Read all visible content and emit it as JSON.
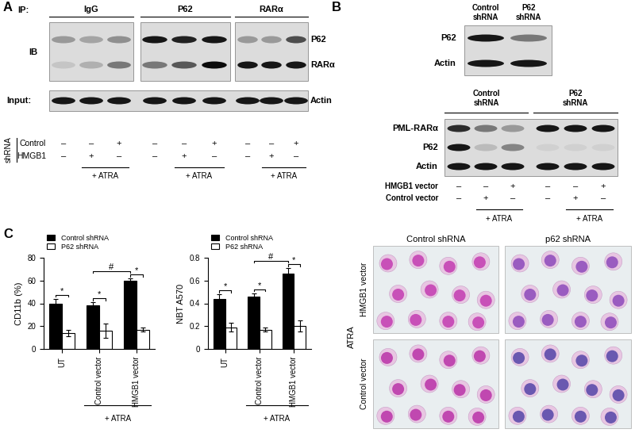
{
  "panel_A": {
    "letter": "A",
    "ip_label": "IP:",
    "ib_label": "IB",
    "ib_rows": [
      "P62",
      "RARα"
    ],
    "groups": [
      {
        "name": "IgG",
        "intensities": [
          [
            0.3,
            0.25,
            0.35
          ],
          [
            0.1,
            0.2,
            0.45
          ]
        ]
      },
      {
        "name": "P62",
        "intensities": [
          [
            0.9,
            0.85,
            0.9
          ],
          [
            0.45,
            0.6,
            0.95
          ]
        ]
      },
      {
        "name": "RARα",
        "intensities": [
          [
            0.3,
            0.3,
            0.65
          ],
          [
            0.9,
            0.9,
            0.9
          ]
        ]
      }
    ],
    "input_label": "Input:",
    "input_row": {
      "label": "Actin",
      "intensities": [
        0.9,
        0.9,
        0.9,
        0.9,
        0.9,
        0.9,
        0.9,
        0.9,
        0.9
      ]
    },
    "shrna_label": "shRNA",
    "conditions": [
      {
        "name": "Control",
        "marks": [
          "–",
          "–",
          "+"
        ]
      },
      {
        "name": "HMGB1",
        "marks": [
          "–",
          "+",
          "–"
        ]
      }
    ],
    "treatment": "+ ATRA",
    "treated_lanes": [
      false,
      true,
      true
    ]
  },
  "panel_B": {
    "letter": "B",
    "top_blot": {
      "lanes": [
        "Control shRNA",
        "P62 shRNA"
      ],
      "rows": [
        {
          "label": "P62",
          "intensities": [
            0.9,
            0.45
          ]
        },
        {
          "label": "Actin",
          "intensities": [
            0.9,
            0.9
          ]
        }
      ]
    },
    "bottom_blot": {
      "groups": [
        "Control shRNA",
        "P62 shRNA"
      ],
      "rows": [
        {
          "label": "PML-RARα",
          "intensities": [
            0.8,
            0.45,
            0.3,
            0.9,
            0.9,
            0.9
          ]
        },
        {
          "label": "P62",
          "intensities": [
            0.9,
            0.15,
            0.4,
            0.05,
            0.05,
            0.05
          ]
        },
        {
          "label": "Actin",
          "intensities": [
            0.9,
            0.9,
            0.9,
            0.9,
            0.9,
            0.9
          ]
        }
      ],
      "conditions": [
        {
          "name": "HMGB1 vector",
          "marks": [
            "–",
            "–",
            "+",
            "–",
            "–",
            "+"
          ]
        },
        {
          "name": "Control vector",
          "marks": [
            "–",
            "+",
            "–",
            "–",
            "+",
            "–"
          ]
        }
      ],
      "treatment": "+ ATRA",
      "treated_lanes": [
        false,
        true,
        true
      ]
    },
    "images": {
      "columns": [
        "Control shRNA",
        "p62 shRNA"
      ],
      "rows": [
        "HMGB1 vector",
        "Control vector"
      ],
      "treatment": "ATRA"
    }
  },
  "panel_C": {
    "letter": "C"
  },
  "chart_data": [
    {
      "type": "bar",
      "y_label": "CD11b (%)",
      "categories": [
        "UT",
        "Control vector",
        "HMGB1 vector"
      ],
      "group_label": "+ ATRA",
      "group_categories": [
        "Control vector",
        "HMGB1 vector"
      ],
      "series": [
        {
          "name": "Control shRNA",
          "color": "#000000",
          "values": [
            40,
            38,
            60
          ],
          "errors": [
            4,
            3,
            2
          ]
        },
        {
          "name": "P62 shRNA",
          "color": "#ffffff",
          "values": [
            14,
            16,
            17
          ],
          "errors": [
            3,
            6,
            2
          ]
        }
      ],
      "ylim": [
        0,
        80
      ],
      "yticks": [
        0,
        20,
        40,
        60,
        80
      ],
      "legend": "upper left",
      "significance": [
        {
          "label": "*",
          "categories": [
            "UT"
          ]
        },
        {
          "label": "*",
          "categories": [
            "Control vector"
          ]
        },
        {
          "label": "*",
          "categories": [
            "HMGB1 vector"
          ]
        },
        {
          "label": "#",
          "categories": [
            "Control vector",
            "HMGB1 vector"
          ],
          "series": "Control shRNA"
        }
      ]
    },
    {
      "type": "bar",
      "y_label": "NBT A570",
      "categories": [
        "UT",
        "Control vector",
        "HMGB1 vector"
      ],
      "group_label": "+ ATRA",
      "group_categories": [
        "Control vector",
        "HMGB1 vector"
      ],
      "series": [
        {
          "name": "Control shRNA",
          "color": "#000000",
          "values": [
            0.44,
            0.46,
            0.66
          ],
          "errors": [
            0.04,
            0.03,
            0.05
          ]
        },
        {
          "name": "P62 shRNA",
          "color": "#ffffff",
          "values": [
            0.19,
            0.17,
            0.2
          ],
          "errors": [
            0.04,
            0.02,
            0.05
          ]
        }
      ],
      "ylim": [
        0,
        0.8
      ],
      "yticks": [
        0,
        0.2,
        0.4,
        0.6,
        0.8
      ],
      "legend": "upper left",
      "significance": [
        {
          "label": "*",
          "categories": [
            "UT"
          ]
        },
        {
          "label": "*",
          "categories": [
            "Control vector"
          ]
        },
        {
          "label": "*",
          "categories": [
            "HMGB1 vector"
          ]
        },
        {
          "label": "#",
          "categories": [
            "Control vector",
            "HMGB1 vector"
          ],
          "series": "Control shRNA"
        }
      ]
    }
  ]
}
